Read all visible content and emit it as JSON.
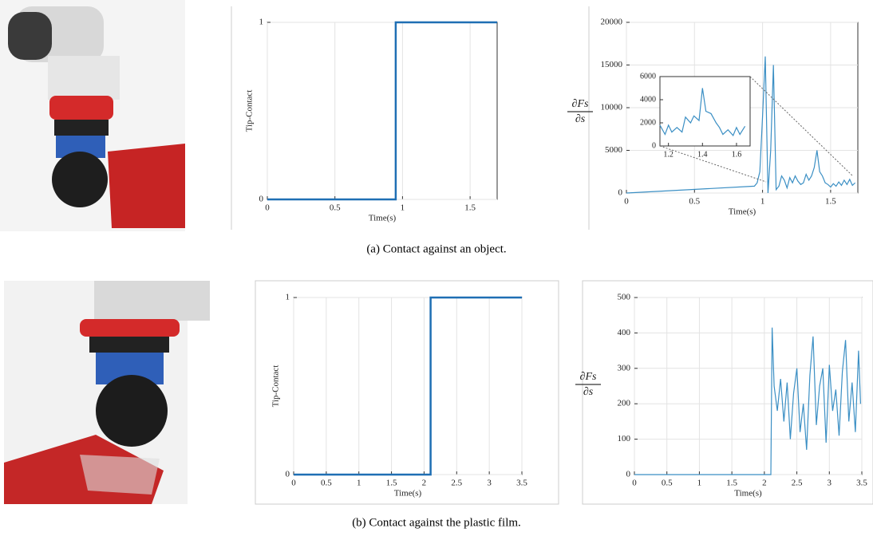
{
  "chart_data": [
    {
      "type": "line",
      "x_label": "Time(s)",
      "y_label": "Tip-Contact",
      "color": "#1f6fb4",
      "x": [
        0,
        0.95,
        0.95,
        1.7
      ],
      "values": [
        0,
        0,
        1,
        1
      ],
      "xlim": [
        0,
        1.7
      ],
      "ylim": [
        0,
        1
      ],
      "xticks": [
        0,
        0.5,
        1,
        1.5
      ],
      "yticks": [
        0,
        1
      ],
      "grid": true
    },
    {
      "type": "line",
      "x_label": "Time(s)",
      "y_label": {
        "numerator": "∂Fs",
        "denominator": "∂s"
      },
      "color": "#3b8fc4",
      "x": [
        0,
        0.94,
        0.96,
        0.98,
        1.0,
        1.02,
        1.04,
        1.06,
        1.08,
        1.1,
        1.12,
        1.14,
        1.16,
        1.18,
        1.2,
        1.22,
        1.24,
        1.26,
        1.28,
        1.3,
        1.32,
        1.34,
        1.36,
        1.38,
        1.4,
        1.42,
        1.44,
        1.46,
        1.48,
        1.5,
        1.52,
        1.54,
        1.56,
        1.58,
        1.6,
        1.62,
        1.64,
        1.66,
        1.68
      ],
      "values": [
        0,
        800,
        1200,
        2500,
        9000,
        16000,
        0,
        5000,
        15000,
        400,
        800,
        2000,
        1500,
        600,
        1800,
        1200,
        2000,
        1400,
        1000,
        1200,
        2200,
        1500,
        2000,
        3000,
        5000,
        2500,
        2000,
        1200,
        1000,
        700,
        1100,
        800,
        1300,
        900,
        1500,
        1000,
        1600,
        900,
        1200
      ],
      "xlim": [
        0,
        1.7
      ],
      "ylim": [
        0,
        20000
      ],
      "xticks": [
        0,
        0.5,
        1,
        1.5
      ],
      "yticks": [
        0,
        5000,
        10000,
        15000,
        20000
      ],
      "grid": true
    },
    {
      "type": "line",
      "color": "#3b8fc4",
      "x": [
        1.15,
        1.18,
        1.2,
        1.22,
        1.25,
        1.28,
        1.3,
        1.33,
        1.35,
        1.38,
        1.4,
        1.42,
        1.45,
        1.48,
        1.5,
        1.52,
        1.55,
        1.58,
        1.6,
        1.62,
        1.65
      ],
      "values": [
        1800,
        1000,
        1800,
        1200,
        1600,
        1200,
        2500,
        2000,
        2600,
        2200,
        5000,
        3000,
        2800,
        2000,
        1600,
        1000,
        1400,
        900,
        1600,
        1000,
        1700
      ],
      "xlim": [
        1.15,
        1.68
      ],
      "ylim": [
        0,
        6000
      ],
      "xticks": [
        1.2,
        1.4,
        1.6
      ],
      "yticks": [
        0,
        2000,
        4000,
        6000
      ],
      "grid": false
    },
    {
      "type": "line",
      "x_label": "Time(s)",
      "y_label": "Tip-Contact",
      "color": "#1f6fb4",
      "x": [
        0,
        2.1,
        2.1,
        3.5
      ],
      "values": [
        0,
        0,
        1,
        1
      ],
      "xlim": [
        0,
        3.5
      ],
      "ylim": [
        0,
        1
      ],
      "xticks": [
        0,
        0.5,
        1,
        1.5,
        2,
        2.5,
        3,
        3.5
      ],
      "yticks": [
        0,
        1
      ],
      "grid": true
    },
    {
      "type": "line",
      "x_label": "Time(s)",
      "y_label": {
        "numerator": "∂Fs",
        "denominator": "∂s"
      },
      "color": "#3b8fc4",
      "x": [
        0,
        2.1,
        2.12,
        2.15,
        2.2,
        2.25,
        2.3,
        2.35,
        2.4,
        2.45,
        2.5,
        2.55,
        2.6,
        2.65,
        2.7,
        2.75,
        2.8,
        2.85,
        2.9,
        2.95,
        3.0,
        3.05,
        3.1,
        3.15,
        3.2,
        3.25,
        3.3,
        3.35,
        3.4,
        3.45,
        3.48
      ],
      "values": [
        0,
        0,
        415,
        250,
        180,
        270,
        150,
        260,
        100,
        230,
        300,
        120,
        200,
        70,
        280,
        390,
        140,
        250,
        300,
        90,
        310,
        180,
        240,
        110,
        290,
        380,
        150,
        260,
        120,
        350,
        200
      ],
      "xlim": [
        0,
        3.5
      ],
      "ylim": [
        0,
        500
      ],
      "xticks": [
        0,
        0.5,
        1,
        1.5,
        2,
        2.5,
        3,
        3.5
      ],
      "yticks": [
        0,
        100,
        200,
        300,
        400,
        500
      ],
      "grid": true
    }
  ],
  "captions": [
    "(a)  Contact against an object.",
    "(b)  Contact against the plastic film."
  ]
}
